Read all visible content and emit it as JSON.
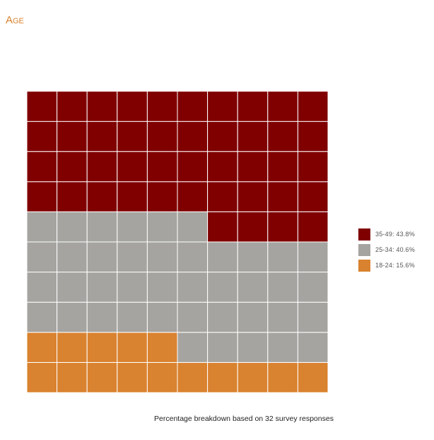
{
  "title": "Age",
  "caption": "Percentage breakdown based on 32 survey responses",
  "colors": {
    "grid_line": "#ffffff",
    "background": "#ffffff"
  },
  "chart_data": {
    "type": "waffle",
    "grid_cols": 10,
    "grid_rows": 10,
    "fill_order": "bottom-to-top, left-to-right",
    "total_cells": 100,
    "series": [
      {
        "label": "18-24: 15.6%",
        "percent": 15.6,
        "cells": 15,
        "color": "#d9822f"
      },
      {
        "label": "25-34: 40.6%",
        "percent": 40.6,
        "cells": 41,
        "color": "#a5a4a0"
      },
      {
        "label": "35-49: 43.8%",
        "percent": 43.8,
        "cells": 44,
        "color": "#800000"
      }
    ],
    "legend": {
      "position": "right",
      "order": [
        "35-49: 43.8%",
        "25-34: 40.6%",
        "18-24: 15.6%"
      ]
    }
  }
}
